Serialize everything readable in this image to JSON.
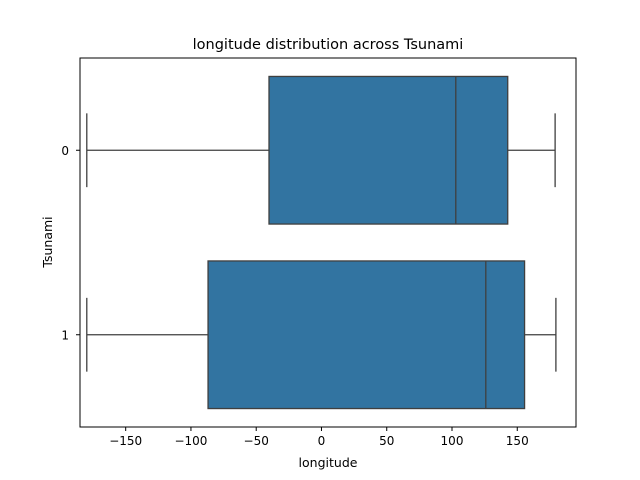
{
  "chart_data": {
    "type": "boxplot",
    "orientation": "horizontal",
    "title": "longitude distribution across Tsunami",
    "xlabel": "longitude",
    "ylabel": "Tsunami",
    "xlim": [
      -185,
      195
    ],
    "xticks": [
      -150,
      -100,
      -50,
      0,
      50,
      100,
      150
    ],
    "xtick_labels": [
      "−150",
      "−100",
      "−50",
      "0",
      "50",
      "100",
      "150"
    ],
    "categories": [
      "0",
      "1"
    ],
    "boxes": [
      {
        "category": "0",
        "whisker_low": -179.8,
        "q1": -40.2,
        "median": 102.9,
        "q3": 142.7,
        "whisker_high": 179.0
      },
      {
        "category": "1",
        "whisker_low": -179.8,
        "q1": -86.9,
        "median": 125.9,
        "q3": 155.6,
        "whisker_high": 179.6
      }
    ],
    "box_color": "#3274a1",
    "line_color": "#3f3f3f",
    "grid": false,
    "legend": false
  }
}
